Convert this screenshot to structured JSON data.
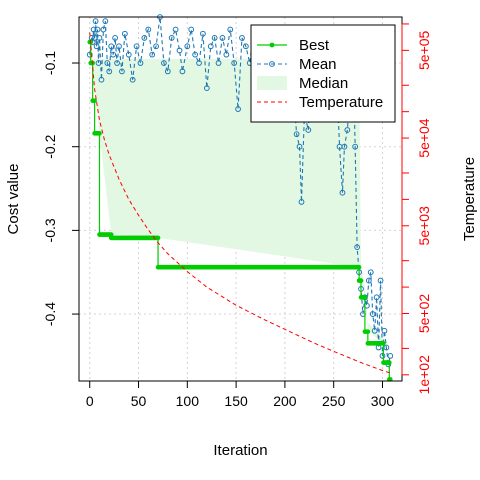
{
  "chart_data": {
    "type": "line",
    "title": "",
    "xlabel": "Iteration",
    "ylabel": "Cost value",
    "ylabel_right": "Temperature",
    "xlim": [
      -11,
      320
    ],
    "ylim": [
      -0.48,
      -0.045
    ],
    "x_ticks": [
      0,
      50,
      100,
      150,
      200,
      250,
      300
    ],
    "y_ticks": [
      -0.1,
      -0.2,
      -0.3,
      -0.4
    ],
    "right_axis": {
      "scale": "log",
      "major_ticks": [
        100,
        500,
        5000,
        50000,
        500000
      ],
      "major_tick_labels": [
        "1e+02",
        "5e+02",
        "5e+03",
        "5e+04",
        "5e+05"
      ],
      "minor_ticks": [
        200,
        1000,
        2000,
        10000,
        20000,
        100000,
        200000,
        1000000
      ]
    },
    "grid": true,
    "legend": {
      "position": "top-right",
      "entries": [
        "Best",
        "Mean",
        "Median",
        "Temperature"
      ]
    },
    "colors": {
      "best": "#00cc00",
      "mean": "#1f78b4",
      "median": "#e3f8e3",
      "temperature": "#ff0000",
      "right_axis": "#ff0000",
      "grid": "#d3d3d3"
    },
    "series": [
      {
        "name": "Best",
        "style": "step-line-points",
        "steps": [
          {
            "x_start": 0,
            "x_end": 1,
            "y": -0.075
          },
          {
            "x_start": 1,
            "x_end": 3,
            "y": -0.1
          },
          {
            "x_start": 3,
            "x_end": 5,
            "y": -0.145
          },
          {
            "x_start": 5,
            "x_end": 10,
            "y": -0.184
          },
          {
            "x_start": 10,
            "x_end": 22,
            "y": -0.305
          },
          {
            "x_start": 22,
            "x_end": 70,
            "y": -0.309
          },
          {
            "x_start": 70,
            "x_end": 276,
            "y": -0.344
          },
          {
            "x_start": 276,
            "x_end": 278,
            "y": -0.36
          },
          {
            "x_start": 278,
            "x_end": 282,
            "y": -0.38
          },
          {
            "x_start": 282,
            "x_end": 285,
            "y": -0.421
          },
          {
            "x_start": 285,
            "x_end": 301,
            "y": -0.435
          },
          {
            "x_start": 301,
            "x_end": 307,
            "y": -0.458
          },
          {
            "x_start": 307,
            "x_end": 308,
            "y": -0.478
          }
        ]
      },
      {
        "name": "Mean",
        "style": "dashed-line-open-circles",
        "x": [
          0,
          2,
          3,
          4,
          5,
          6,
          7,
          8,
          9,
          10,
          12,
          14,
          16,
          18,
          20,
          22,
          24,
          26,
          28,
          30,
          33,
          36,
          40,
          44,
          48,
          52,
          56,
          60,
          64,
          68,
          72,
          76,
          80,
          84,
          88,
          92,
          95,
          100,
          104,
          108,
          112,
          116,
          120,
          124,
          128,
          132,
          136,
          140,
          144,
          148,
          152,
          156,
          160,
          164,
          168,
          172,
          176,
          180,
          184,
          188,
          192,
          196,
          200,
          204,
          208,
          212,
          215,
          217,
          220,
          224,
          228,
          232,
          236,
          240,
          244,
          248,
          252,
          256,
          259,
          261,
          264,
          268,
          270,
          272,
          274,
          276,
          278,
          280,
          282,
          284,
          286,
          288,
          290,
          292,
          294,
          296,
          298,
          300,
          302,
          304,
          306,
          308
        ],
        "y": [
          -0.09,
          -0.07,
          -0.075,
          -0.06,
          -0.07,
          -0.05,
          -0.08,
          -0.06,
          -0.1,
          -0.07,
          -0.12,
          -0.06,
          -0.05,
          -0.1,
          -0.11,
          -0.08,
          -0.09,
          -0.07,
          -0.1,
          -0.08,
          -0.11,
          -0.065,
          -0.09,
          -0.12,
          -0.08,
          -0.1,
          -0.07,
          -0.06,
          -0.09,
          -0.08,
          -0.045,
          -0.1,
          -0.11,
          -0.07,
          -0.06,
          -0.085,
          -0.11,
          -0.08,
          -0.06,
          -0.09,
          -0.1,
          -0.065,
          -0.13,
          -0.08,
          -0.07,
          -0.1,
          -0.07,
          -0.09,
          -0.06,
          -0.1,
          -0.155,
          -0.07,
          -0.08,
          -0.1,
          -0.06,
          -0.09,
          -0.07,
          -0.1,
          -0.11,
          -0.06,
          -0.08,
          -0.1,
          -0.07,
          -0.09,
          -0.12,
          -0.185,
          -0.2,
          -0.266,
          -0.16,
          -0.18,
          -0.11,
          -0.1,
          -0.09,
          -0.1,
          -0.155,
          -0.12,
          -0.09,
          -0.2,
          -0.255,
          -0.2,
          -0.18,
          -0.12,
          -0.1,
          -0.2,
          -0.32,
          -0.35,
          -0.37,
          -0.4,
          -0.38,
          -0.39,
          -0.36,
          -0.35,
          -0.4,
          -0.42,
          -0.38,
          -0.44,
          -0.36,
          -0.45,
          -0.42,
          -0.44,
          -0.46,
          -0.45
        ]
      },
      {
        "name": "Median",
        "style": "filled-band",
        "x": [
          0,
          10,
          22,
          70,
          276,
          278,
          282,
          285,
          301,
          308
        ],
        "y_low": [
          -0.075,
          -0.184,
          -0.305,
          -0.309,
          -0.344,
          -0.36,
          -0.38,
          -0.421,
          -0.435,
          -0.458
        ],
        "y_high": [
          -0.095,
          -0.095,
          -0.095,
          -0.095,
          -0.095,
          -0.34,
          -0.37,
          -0.41,
          -0.43,
          -0.455
        ]
      },
      {
        "name": "Temperature",
        "style": "dashed-line",
        "axis": "right",
        "x": [
          0,
          5,
          10,
          15,
          20,
          30,
          40,
          50,
          60,
          70,
          80,
          100,
          120,
          150,
          180,
          200,
          230,
          250,
          270,
          280,
          300,
          308
        ],
        "y": [
          800000,
          180000,
          80000,
          48000,
          32000,
          17000,
          10000,
          6600,
          4500,
          3200,
          2400,
          1500,
          1000,
          620,
          420,
          330,
          230,
          185,
          150,
          135,
          112,
          105
        ]
      }
    ]
  }
}
